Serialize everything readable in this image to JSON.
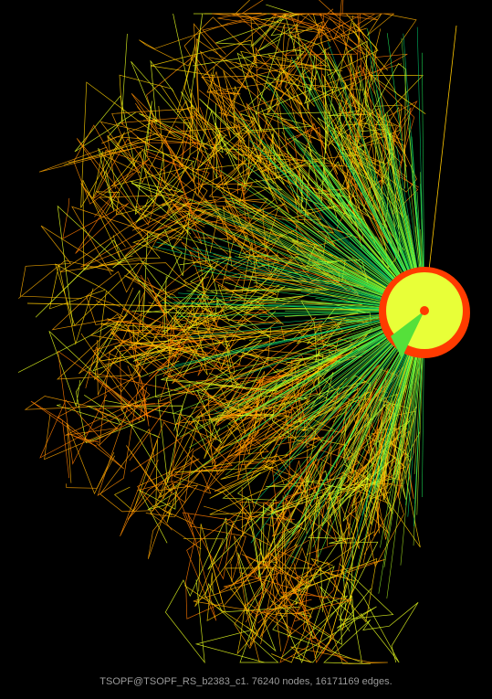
{
  "caption": "TSOPF@TSOPF_RS_b2383_c1. 76240 nodes, 16171169 edges.",
  "colors": {
    "background": "#000000",
    "edge_near": "#00e07a",
    "edge_mid": "#9aff2a",
    "edge_far": "#ff8c00",
    "node_core": "#f2ff3a",
    "node_ring": "#ff3b00"
  }
}
